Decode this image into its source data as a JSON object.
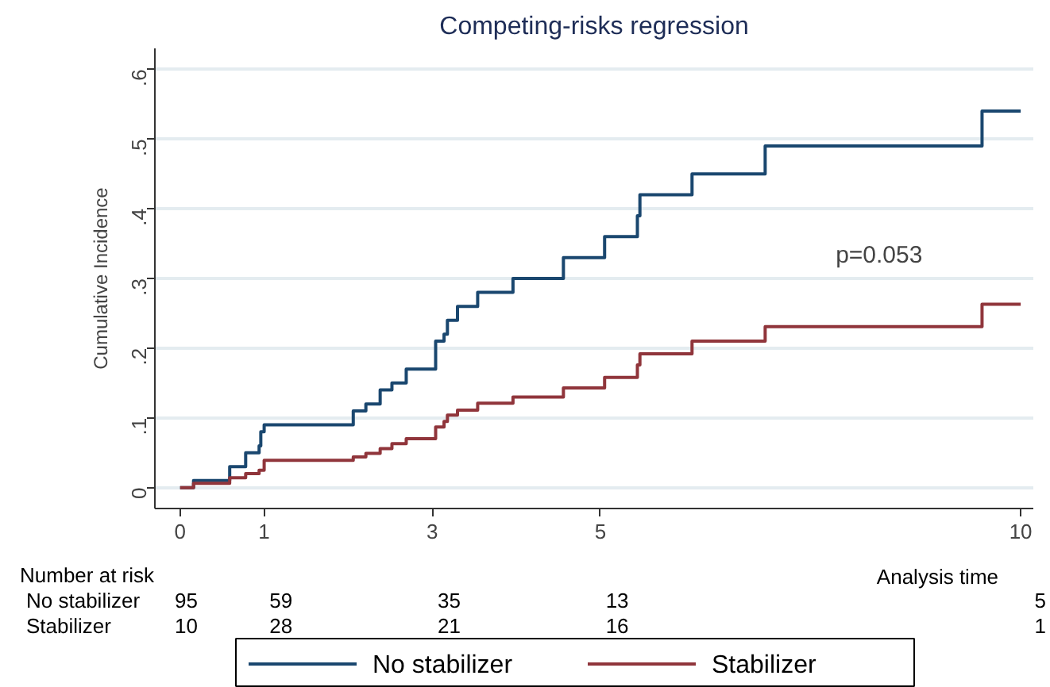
{
  "chart_data": {
    "type": "step",
    "title": "Competing-risks regression",
    "ylabel": "Cumulative Incidence",
    "xlabel": "Analysis time",
    "xlim": [
      -0.3,
      10.15
    ],
    "xticks": [
      0,
      1,
      3,
      5,
      10
    ],
    "ylim": [
      -0.03,
      0.63
    ],
    "yticks": [
      0,
      {
        "value": 0.1,
        "label": ".1"
      },
      {
        "value": 0.2,
        "label": ".2"
      },
      {
        "value": 0.3,
        "label": ".3"
      },
      {
        "value": 0.4,
        "label": ".4"
      },
      {
        "value": 0.5,
        "label": ".5"
      },
      {
        "value": 0.6,
        "label": ".6"
      }
    ],
    "grid": "y",
    "legend": "bottom",
    "series": [
      {
        "name": "No stabilizer",
        "color": "#1a476f",
        "x": [
          0,
          0.16,
          0.59,
          0.78,
          0.94,
          0.96,
          1.0,
          2.06,
          2.21,
          2.38,
          2.52,
          2.69,
          3.04,
          3.14,
          3.18,
          3.3,
          3.54,
          3.96,
          4.56,
          5.05,
          5.44,
          5.47,
          6.09,
          6.96,
          9.54,
          10.0
        ],
        "values": [
          0,
          0.01,
          0.03,
          0.05,
          0.06,
          0.08,
          0.09,
          0.11,
          0.12,
          0.14,
          0.15,
          0.17,
          0.21,
          0.22,
          0.24,
          0.26,
          0.28,
          0.3,
          0.33,
          0.36,
          0.39,
          0.42,
          0.45,
          0.49,
          0.54,
          0.54
        ]
      },
      {
        "name": "Stabilizer",
        "color": "#90353b",
        "x": [
          0,
          0.16,
          0.59,
          0.78,
          0.94,
          1.0,
          2.06,
          2.21,
          2.38,
          2.52,
          2.69,
          3.04,
          3.14,
          3.18,
          3.3,
          3.54,
          3.96,
          4.56,
          5.05,
          5.44,
          5.47,
          6.09,
          6.96,
          9.54,
          10.0
        ],
        "values": [
          0,
          0.006,
          0.014,
          0.02,
          0.025,
          0.039,
          0.044,
          0.049,
          0.056,
          0.063,
          0.07,
          0.087,
          0.095,
          0.104,
          0.111,
          0.121,
          0.13,
          0.143,
          0.158,
          0.176,
          0.192,
          0.21,
          0.231,
          0.263,
          0.263
        ]
      }
    ],
    "annotations": [
      "p=0.053",
      "Number at risk",
      "No stabilizer",
      "95",
      "59",
      "35",
      "13",
      "5",
      "Stabilizer",
      "10",
      "28",
      "21",
      "16",
      "1"
    ]
  }
}
